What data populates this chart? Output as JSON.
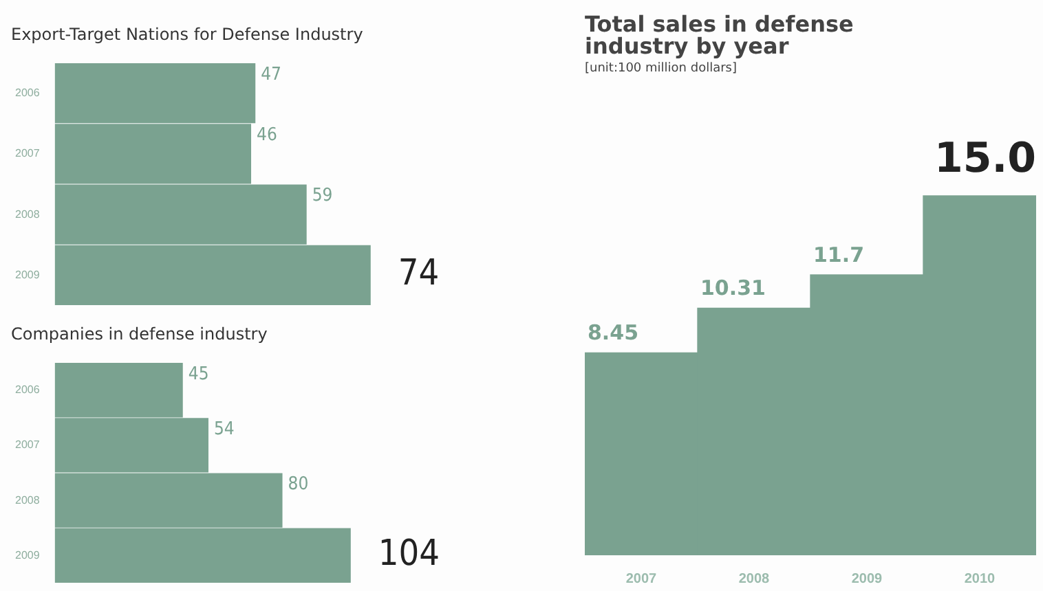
{
  "chart_data": [
    {
      "type": "bar",
      "orientation": "horizontal",
      "title": "Export-Target Nations for Defense Industry",
      "categories": [
        "2006",
        "2007",
        "2008",
        "2009"
      ],
      "values": [
        47,
        46,
        59,
        74
      ],
      "color": "#7aa290",
      "data_labels": true,
      "legend": false
    },
    {
      "type": "bar",
      "orientation": "horizontal",
      "title": "Companies in defense industry",
      "categories": [
        "2006",
        "2007",
        "2008",
        "2009"
      ],
      "values": [
        45,
        54,
        80,
        104
      ],
      "color": "#7aa290",
      "data_labels": true,
      "legend": false
    },
    {
      "type": "bar",
      "title": "Total sales in defense industry by year",
      "subtitle": "[unit:100 million dollars]",
      "categories": [
        "2007",
        "2008",
        "2009",
        "2010"
      ],
      "values": [
        8.45,
        10.31,
        11.7,
        15.0
      ],
      "value_labels": [
        "8.45",
        "10.31",
        "11.7",
        "15.0"
      ],
      "color": "#7aa290",
      "legend": false
    }
  ]
}
